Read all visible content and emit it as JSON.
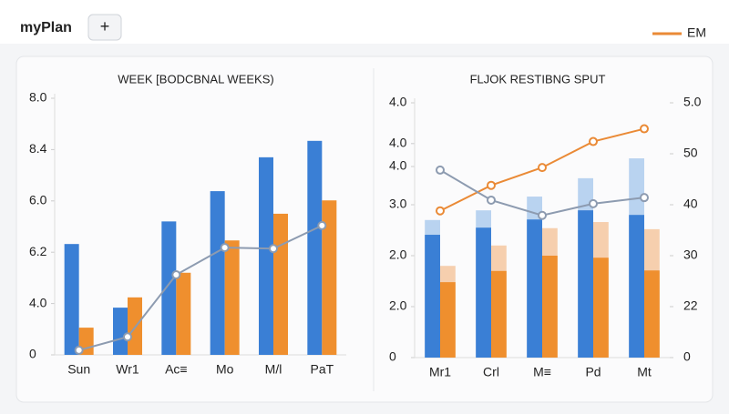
{
  "header": {
    "title": "myPlan",
    "add_button": "+"
  },
  "chart_data": [
    {
      "type": "bar",
      "title": "WEEK [BODCBNAL WEEKS)",
      "categories": [
        "Sun",
        "Wr1",
        "Ac≡",
        "Mo",
        "M/l",
        "PaT"
      ],
      "ylim": [
        0,
        5
      ],
      "yticks": [
        0,
        {
          "value": 1,
          "label": "4.0"
        },
        {
          "value": 2,
          "label": "6.2"
        },
        {
          "value": 3,
          "label": "6.0"
        },
        {
          "value": 4,
          "label": "8.4"
        },
        {
          "value": 5,
          "label": "8.0"
        }
      ],
      "bars": [
        {
          "color": "#3a7fd5",
          "values": [
            2.16,
            0.92,
            2.6,
            3.19,
            3.85,
            4.17
          ]
        },
        {
          "color": "#ef8f2e",
          "values": [
            0.53,
            1.12,
            1.6,
            2.23,
            2.75,
            3.01
          ]
        }
      ],
      "lines": [
        {
          "color": "#8d9bb0",
          "values": [
            0.09,
            0.35,
            1.56,
            2.09,
            2.07,
            2.52
          ]
        }
      ]
    },
    {
      "type": "bar",
      "title": "FLJOK RESTIBNG SPUT",
      "categories": [
        "Mr1",
        "Crl",
        "M≡",
        "Pd",
        "Mt"
      ],
      "ylim": [
        0,
        5
      ],
      "yticks": [
        0,
        {
          "value": 1,
          "label": "2.0"
        },
        {
          "value": 2,
          "label": "2.0"
        },
        {
          "value": 3,
          "label": "3.0"
        },
        {
          "value": 3.75,
          "label": "4.0"
        },
        {
          "value": 4.2,
          "label": "4.0"
        },
        {
          "value": 5,
          "label": "4.0"
        }
      ],
      "y2lim": [
        0,
        5
      ],
      "y2ticks": [
        0,
        {
          "value": 1,
          "label": "22"
        },
        {
          "value": 2,
          "label": "30"
        },
        {
          "value": 3,
          "label": "40"
        },
        {
          "value": 4,
          "label": "50"
        },
        {
          "value": 5,
          "label": "5.0"
        }
      ],
      "bars": [
        {
          "color": "#3a7fd5",
          "values": [
            2.41,
            2.55,
            2.71,
            2.89,
            2.8
          ],
          "light": {
            "color": "#b9d3f0",
            "values": [
              2.7,
              2.89,
              3.16,
              3.52,
              3.91
            ]
          }
        },
        {
          "color": "#ef8f2e",
          "values": [
            1.48,
            1.7,
            2.0,
            1.96,
            1.71
          ],
          "light": {
            "color": "#f6cfae",
            "values": [
              1.8,
              2.2,
              2.54,
              2.66,
              2.52
            ]
          }
        }
      ],
      "lines": [
        {
          "name": "EM",
          "color": "#ea8a36",
          "axis": "y2",
          "values": [
            2.88,
            3.38,
            3.73,
            4.24,
            4.49
          ]
        },
        {
          "color": "#8d9bb0",
          "values": [
            3.68,
            3.09,
            2.79,
            3.02,
            3.14
          ]
        }
      ]
    }
  ]
}
